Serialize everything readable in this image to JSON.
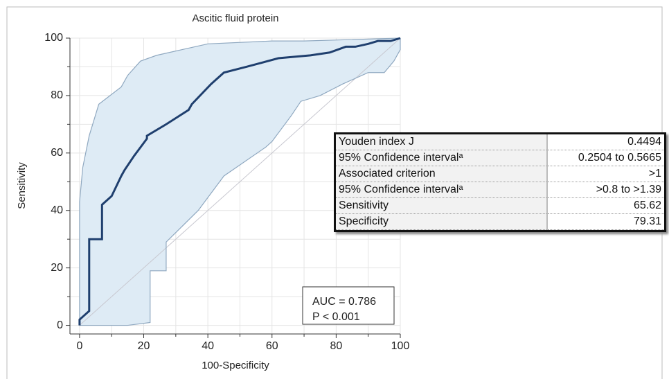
{
  "chart_data": {
    "type": "roc",
    "title": "Ascitic fluid protein",
    "xlabel": "100-Specificity",
    "ylabel": "Sensitivity",
    "xlim": [
      -3,
      100
    ],
    "ylim": [
      -3,
      100
    ],
    "xticks": [
      0,
      20,
      40,
      60,
      80,
      100
    ],
    "yticks": [
      0,
      20,
      40,
      60,
      80,
      100
    ],
    "xminor": [
      10,
      30,
      50,
      70,
      90
    ],
    "yminor": [
      10,
      30,
      50,
      70,
      90
    ],
    "grid": true,
    "curve": {
      "color": "#1f3f6e",
      "x": [
        0,
        0,
        3,
        3,
        7,
        7,
        10,
        13,
        14,
        17,
        21,
        21,
        27,
        34,
        35,
        41,
        45,
        52,
        62,
        72,
        78,
        83,
        86,
        90,
        93,
        97,
        100
      ],
      "y": [
        0,
        2,
        5,
        30,
        30,
        42,
        45,
        52,
        54,
        59,
        65,
        66,
        70,
        75,
        77,
        84,
        88,
        90,
        93,
        94,
        95,
        97,
        97,
        98,
        99,
        99,
        100
      ]
    },
    "ci_upper": {
      "color": "#8fa8c0",
      "fill": "#deebf5",
      "x": [
        0,
        0,
        1,
        3,
        6,
        13,
        15,
        19,
        24,
        32,
        40,
        60,
        70,
        100
      ],
      "y": [
        0,
        43,
        55,
        66,
        77,
        83,
        87,
        92,
        94,
        96,
        98,
        99,
        99,
        100
      ]
    },
    "ci_lower": {
      "color": "#8fa8c0",
      "x": [
        0,
        15,
        22,
        22,
        27,
        27,
        37,
        45,
        58,
        60,
        66,
        69,
        75,
        82,
        90,
        95,
        98,
        100,
        100
      ],
      "y": [
        0,
        0,
        1,
        19,
        19,
        29,
        40,
        52,
        62,
        64,
        73,
        78,
        80,
        84,
        88,
        88,
        92,
        96,
        100
      ]
    },
    "diagonal_color": "#c8c8d0",
    "annotations": [
      "AUC = 0.786",
      "P < 0.001"
    ]
  },
  "table": {
    "rows": [
      [
        "Youden index J",
        "0.4494"
      ],
      [
        "95% Confidence intervalᵃ",
        "0.2504 to 0.5665"
      ],
      [
        "Associated criterion",
        ">1"
      ],
      [
        "95% Confidence intervalᵃ",
        ">0.8 to >1.39"
      ],
      [
        "Sensitivity",
        "65.62"
      ],
      [
        "Specificity",
        "79.31"
      ]
    ]
  }
}
